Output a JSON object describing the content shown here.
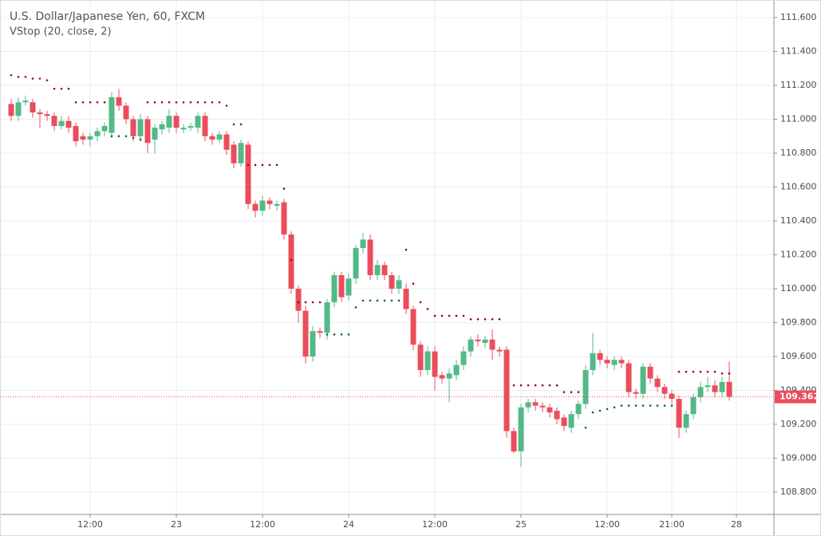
{
  "chart_data": {
    "type": "candlestick",
    "title": "U.S. Dollar/Japanese Yen, 60, FXCM",
    "subtitle": "VStop (20, close, 2)",
    "open": [
      111.09,
      111.02,
      111.1,
      111.1,
      111.04,
      111.03,
      111.02,
      110.96,
      110.99,
      110.96,
      110.9,
      110.88,
      110.9,
      110.93,
      110.92,
      111.13,
      111.08,
      111.0,
      110.9,
      111.0,
      110.88,
      110.94,
      110.95,
      111.02,
      110.94,
      110.95,
      110.95,
      111.02,
      110.9,
      110.88,
      110.91,
      110.85,
      110.74,
      110.85,
      110.5,
      110.46,
      110.52,
      110.49,
      110.51,
      110.32,
      110.0,
      109.87,
      109.6,
      109.75,
      109.74,
      109.92,
      110.08,
      109.96,
      110.06,
      110.24,
      110.29,
      110.08,
      110.14,
      110.08,
      110.0,
      110.0,
      109.88,
      109.67,
      109.52,
      109.63,
      109.49,
      109.47,
      109.49,
      109.55,
      109.63,
      109.7,
      109.68,
      109.7,
      109.64,
      109.64,
      109.16,
      109.04,
      109.3,
      109.33,
      109.31,
      109.3,
      109.28,
      109.24,
      109.18,
      109.26,
      109.32,
      109.52,
      109.62,
      109.58,
      109.55,
      109.58,
      109.56,
      109.39,
      109.38,
      109.54,
      109.47,
      109.42,
      109.38,
      109.35,
      109.18,
      109.26,
      109.36,
      109.42,
      109.43,
      109.39,
      109.45
    ],
    "high": [
      111.12,
      111.13,
      111.14,
      111.12,
      111.06,
      111.05,
      111.04,
      111.02,
      111.02,
      110.98,
      110.92,
      110.92,
      110.95,
      110.98,
      111.16,
      111.18,
      111.1,
      111.02,
      111.03,
      111.02,
      110.97,
      110.99,
      111.06,
      111.04,
      110.97,
      110.98,
      111.04,
      111.04,
      110.92,
      110.93,
      110.93,
      110.87,
      110.88,
      110.87,
      110.52,
      110.55,
      110.54,
      110.52,
      110.53,
      110.34,
      110.02,
      109.9,
      109.78,
      109.77,
      109.94,
      110.1,
      110.1,
      110.09,
      110.26,
      110.33,
      110.32,
      110.17,
      110.16,
      110.1,
      110.08,
      110.03,
      109.9,
      109.69,
      109.66,
      109.66,
      109.51,
      109.53,
      109.58,
      109.66,
      109.72,
      109.73,
      109.72,
      109.76,
      109.66,
      109.66,
      109.18,
      109.32,
      109.35,
      109.35,
      109.33,
      109.32,
      109.3,
      109.26,
      109.28,
      109.34,
      109.55,
      109.74,
      109.64,
      109.6,
      109.6,
      109.6,
      109.58,
      109.41,
      109.56,
      109.56,
      109.49,
      109.44,
      109.4,
      109.37,
      109.28,
      109.38,
      109.45,
      109.48,
      109.46,
      109.48,
      109.57
    ],
    "low": [
      110.99,
      110.99,
      111.08,
      111.01,
      110.95,
      110.99,
      110.93,
      110.94,
      110.92,
      110.84,
      110.85,
      110.84,
      110.87,
      110.9,
      110.89,
      111.05,
      110.97,
      110.87,
      110.87,
      110.8,
      110.8,
      110.91,
      110.92,
      110.92,
      110.92,
      110.93,
      110.92,
      110.87,
      110.85,
      110.86,
      110.79,
      110.71,
      110.72,
      110.47,
      110.42,
      110.43,
      110.47,
      110.46,
      110.29,
      109.97,
      109.8,
      109.56,
      109.57,
      109.71,
      109.7,
      109.89,
      109.92,
      109.93,
      110.03,
      110.21,
      110.05,
      110.05,
      110.05,
      109.97,
      109.97,
      109.85,
      109.64,
      109.48,
      109.49,
      109.4,
      109.44,
      109.33,
      109.46,
      109.52,
      109.6,
      109.66,
      109.65,
      109.58,
      109.6,
      109.12,
      109.03,
      108.95,
      109.27,
      109.28,
      109.27,
      109.24,
      109.2,
      109.16,
      109.15,
      109.23,
      109.29,
      109.49,
      109.55,
      109.53,
      109.52,
      109.53,
      109.36,
      109.35,
      109.35,
      109.44,
      109.39,
      109.35,
      109.32,
      109.12,
      109.15,
      109.23,
      109.33,
      109.39,
      109.36,
      109.36,
      109.34
    ],
    "close": [
      111.02,
      111.1,
      111.11,
      111.04,
      111.03,
      111.02,
      110.96,
      110.99,
      110.95,
      110.87,
      110.88,
      110.9,
      110.93,
      110.96,
      111.13,
      111.08,
      111.0,
      110.9,
      111.0,
      110.86,
      110.95,
      110.97,
      111.02,
      110.95,
      110.95,
      110.96,
      111.02,
      110.9,
      110.88,
      110.91,
      110.82,
      110.74,
      110.86,
      110.5,
      110.46,
      110.52,
      110.5,
      110.5,
      110.32,
      110.0,
      109.87,
      109.6,
      109.75,
      109.74,
      109.92,
      110.08,
      109.95,
      110.06,
      110.24,
      110.29,
      110.08,
      110.14,
      110.08,
      110.0,
      110.05,
      109.88,
      109.67,
      109.52,
      109.63,
      109.48,
      109.47,
      109.5,
      109.55,
      109.63,
      109.7,
      109.69,
      109.7,
      109.64,
      109.63,
      109.16,
      109.04,
      109.3,
      109.33,
      109.31,
      109.3,
      109.27,
      109.23,
      109.19,
      109.26,
      109.32,
      109.52,
      109.62,
      109.58,
      109.56,
      109.58,
      109.56,
      109.39,
      109.38,
      109.54,
      109.47,
      109.42,
      109.38,
      109.35,
      109.18,
      109.26,
      109.36,
      109.42,
      109.43,
      109.39,
      109.45,
      109.362
    ],
    "vstop": [
      111.26,
      111.25,
      111.25,
      111.24,
      111.24,
      111.23,
      111.18,
      111.18,
      111.18,
      111.1,
      111.1,
      111.1,
      111.1,
      111.1,
      110.9,
      110.9,
      110.9,
      110.89,
      110.88,
      111.1,
      111.1,
      111.1,
      111.1,
      111.1,
      111.1,
      111.1,
      111.1,
      111.1,
      111.1,
      111.1,
      111.08,
      110.97,
      110.97,
      110.73,
      110.73,
      110.73,
      110.73,
      110.73,
      110.59,
      110.17,
      109.92,
      109.92,
      109.92,
      109.92,
      109.73,
      109.73,
      109.73,
      109.73,
      109.89,
      109.93,
      109.93,
      109.93,
      109.93,
      109.93,
      109.93,
      110.23,
      110.03,
      109.92,
      109.88,
      109.84,
      109.84,
      109.84,
      109.84,
      109.84,
      109.82,
      109.82,
      109.82,
      109.82,
      109.82,
      null,
      109.43,
      109.43,
      109.43,
      109.43,
      109.43,
      109.43,
      109.43,
      109.39,
      109.39,
      109.39,
      109.18,
      109.27,
      109.28,
      109.29,
      109.3,
      109.31,
      109.31,
      109.31,
      109.31,
      109.31,
      109.31,
      109.31,
      109.31,
      109.51,
      109.51,
      109.51,
      109.51,
      109.51,
      109.51,
      109.5,
      109.5
    ],
    "colors": {
      "up": "#53b987",
      "down": "#eb4d5c",
      "vstop_up": "#0b6b3a",
      "vstop_down": "#8e0a1e",
      "grid": "#e9edf2"
    },
    "grid": true,
    "xlim": [
      -1,
      106.22
    ],
    "xticks": [
      {
        "value": 11,
        "label": "12:00"
      },
      {
        "value": 23,
        "label": "23"
      },
      {
        "value": 35,
        "label": "12:00"
      },
      {
        "value": 47,
        "label": "24"
      },
      {
        "value": 59,
        "label": "12:00"
      },
      {
        "value": 71,
        "label": "25"
      },
      {
        "value": 83,
        "label": "12:00"
      },
      {
        "value": 92,
        "label": "21:00"
      },
      {
        "value": 101,
        "label": "28"
      }
    ],
    "ylim": [
      108.668,
      111.68
    ],
    "yticks": [
      {
        "value": 108.8,
        "label": "108.800"
      },
      {
        "value": 109.0,
        "label": "109.000"
      },
      {
        "value": 109.2,
        "label": "109.200"
      },
      {
        "value": 109.4,
        "label": "109.400"
      },
      {
        "value": 109.6,
        "label": "109.600"
      },
      {
        "value": 109.8,
        "label": "109.800"
      },
      {
        "value": 110.0,
        "label": "110.000"
      },
      {
        "value": 110.2,
        "label": "110.200"
      },
      {
        "value": 110.4,
        "label": "110.400"
      },
      {
        "value": 110.6,
        "label": "110.600"
      },
      {
        "value": 110.8,
        "label": "110.800"
      },
      {
        "value": 111.0,
        "label": "111.000"
      },
      {
        "value": 111.2,
        "label": "111.200"
      },
      {
        "value": 111.4,
        "label": "111.400"
      },
      {
        "value": 111.6,
        "label": "111.600"
      }
    ]
  }
}
